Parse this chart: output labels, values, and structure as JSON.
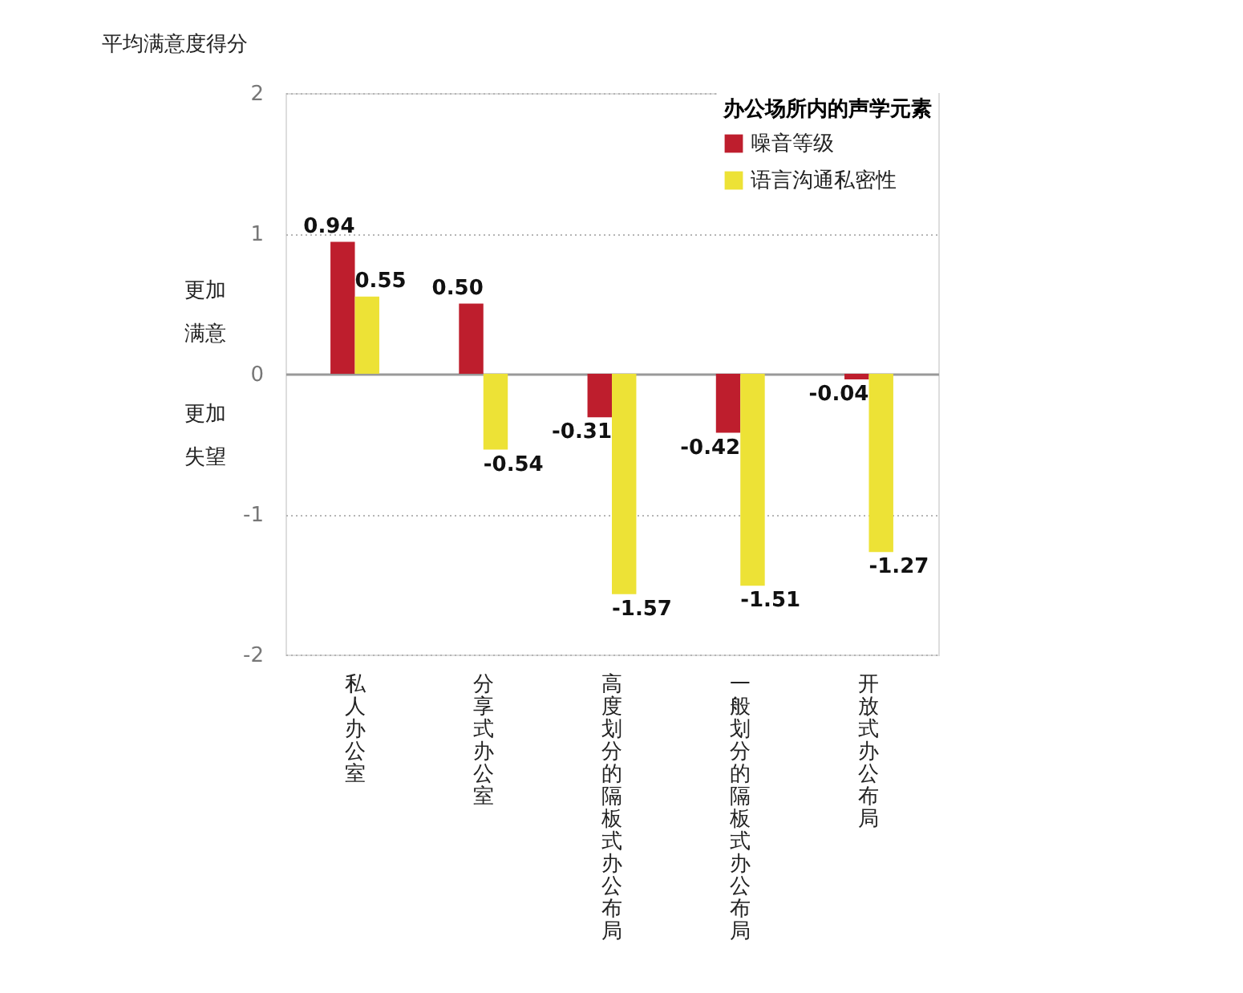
{
  "chart_data": {
    "type": "bar",
    "ylabel": "平均满意度得分",
    "legend_title": "办公场所内的声学元素",
    "categories": [
      "私人办公室",
      "分享式办公室",
      "高度划分的隔板式办公布局",
      "一般划分的隔板式办公布局",
      "开放式办公布局"
    ],
    "series": [
      {
        "name": "噪音等级",
        "color": "#be1e2d",
        "values": [
          0.94,
          0.5,
          -0.31,
          -0.42,
          -0.04
        ],
        "value_labels": [
          "0.94",
          "0.50",
          "-0.31",
          "-0.42",
          "-0.04"
        ]
      },
      {
        "name": "语言沟通私密性",
        "color": "#ede236",
        "values": [
          0.55,
          -0.54,
          -1.57,
          -1.51,
          -1.27
        ],
        "value_labels": [
          "0.55",
          "-0.54",
          "-1.57",
          "-1.51",
          "-1.27"
        ]
      }
    ],
    "ylim": [
      -2,
      2
    ],
    "yticks": [
      -2,
      -1,
      0,
      1,
      2
    ],
    "grid": "y",
    "legend": "top right",
    "annotations": [
      "更加满意",
      "更加失望"
    ]
  }
}
